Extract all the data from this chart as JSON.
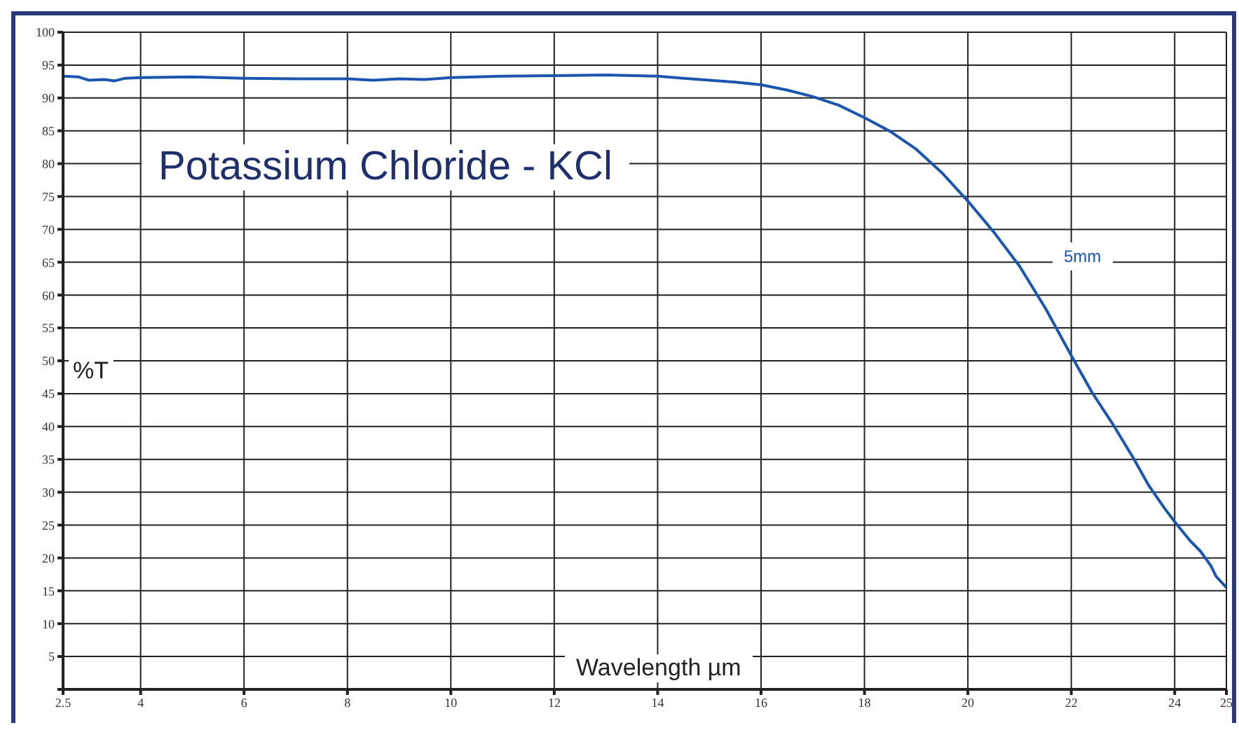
{
  "chart_data": {
    "type": "line",
    "title": "Potassium Chloride - KCl",
    "xlabel": "Wavelength µm",
    "ylabel": "%T",
    "series": [
      {
        "name": "5mm",
        "color": "#1a56b0",
        "x": [
          2.5,
          2.8,
          3.0,
          3.3,
          3.5,
          3.7,
          4,
          5,
          6,
          7,
          8,
          8.5,
          9,
          9.5,
          10,
          11,
          12,
          13,
          14,
          14.5,
          15,
          15.5,
          16,
          16.5,
          17,
          17.5,
          18,
          18.5,
          19,
          19.5,
          20,
          20.5,
          21,
          21.5,
          22,
          22.4,
          22.8,
          23.2,
          23.5,
          23.8,
          24,
          24.3,
          24.5,
          24.7,
          24.8,
          25
        ],
        "values": [
          93.3,
          93.2,
          92.7,
          92.8,
          92.6,
          93.0,
          93.1,
          93.2,
          93.0,
          92.9,
          92.9,
          92.7,
          92.9,
          92.8,
          93.1,
          93.3,
          93.4,
          93.5,
          93.3,
          93.0,
          92.7,
          92.4,
          92.0,
          91.2,
          90.2,
          88.9,
          87.0,
          84.9,
          82.2,
          78.6,
          74.3,
          69.6,
          64.4,
          58.0,
          50.8,
          45.2,
          40.4,
          35.2,
          31.0,
          27.6,
          25.5,
          22.6,
          21.0,
          18.8,
          17.2,
          15.5
        ]
      }
    ],
    "xlim": [
      2.5,
      25
    ],
    "xticks": [
      2.5,
      4,
      6,
      8,
      10,
      12,
      14,
      16,
      18,
      20,
      22,
      24,
      25
    ],
    "ylim": [
      0,
      100
    ],
    "yticks": [
      {
        "value": 0,
        "label": null
      },
      5,
      10,
      15,
      20,
      25,
      30,
      35,
      40,
      45,
      50,
      55,
      60,
      65,
      70,
      75,
      80,
      85,
      90,
      95,
      100
    ],
    "grid": true,
    "legend": false,
    "marker": "none",
    "line_style": "solid"
  }
}
